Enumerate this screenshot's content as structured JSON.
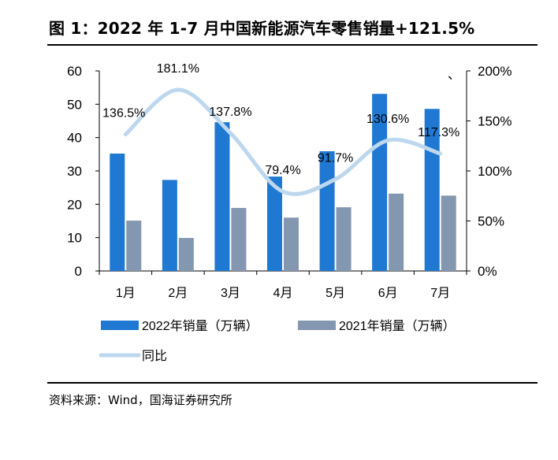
{
  "figure": {
    "title": "图 1：2022 年 1-7 月中国新能源汽车零售销量+121.5%",
    "source": "资料来源：Wind，国海证券研究所",
    "stray_mark": "、"
  },
  "chart_data": {
    "type": "bar",
    "categories": [
      "1月",
      "2月",
      "3月",
      "4月",
      "5月",
      "6月",
      "7月"
    ],
    "series": [
      {
        "name": "2022年销量（万辆）",
        "type": "bar",
        "axis": "left",
        "color": "#1f78d1",
        "values": [
          35.2,
          27.3,
          44.6,
          28.3,
          35.9,
          53.1,
          48.6
        ]
      },
      {
        "name": "2021年销量（万辆）",
        "type": "bar",
        "axis": "left",
        "color": "#8497b0",
        "values": [
          15.1,
          9.9,
          18.9,
          16.0,
          19.1,
          23.2,
          22.6
        ]
      },
      {
        "name": "同比",
        "type": "line",
        "axis": "right",
        "color": "#bdd7ee",
        "values": [
          136.5,
          181.1,
          137.8,
          79.4,
          91.7,
          130.6,
          117.3
        ],
        "labels": [
          "136.5%",
          "181.1%",
          "137.8%",
          "79.4%",
          "91.7%",
          "130.6%",
          "117.3%"
        ]
      }
    ],
    "y_left": {
      "min": 0,
      "max": 60,
      "ticks": [
        "0",
        "10",
        "20",
        "30",
        "40",
        "50",
        "60"
      ]
    },
    "y_right": {
      "min": 0,
      "max": 200,
      "ticks": [
        "0%",
        "50%",
        "100%",
        "150%",
        "200%"
      ]
    },
    "grid": false,
    "legend_position": "bottom"
  }
}
